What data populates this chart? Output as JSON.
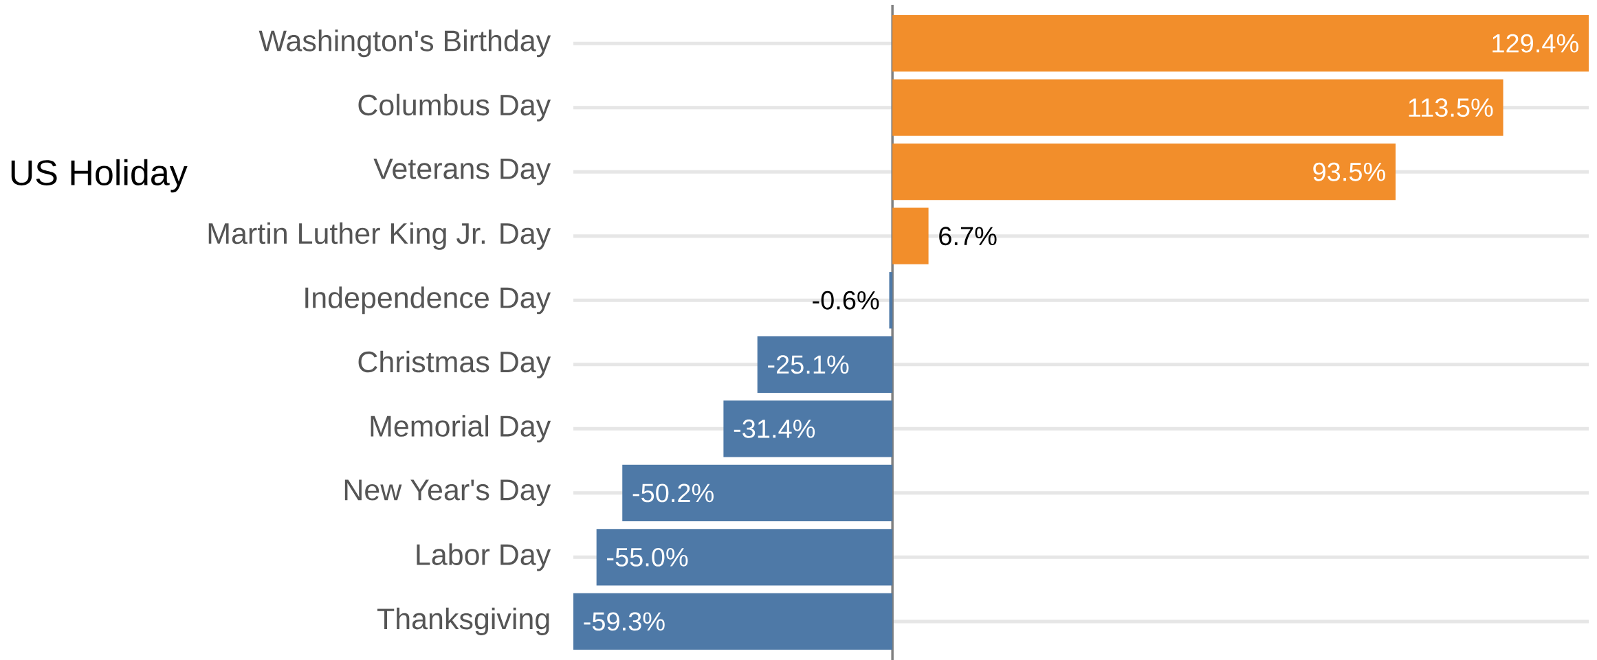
{
  "chart_data": {
    "type": "bar",
    "orientation": "horizontal",
    "ylabel": "US Holiday",
    "categories": [
      "Washington's Birthday",
      "Columbus Day",
      "Veterans Day",
      "Martin Luther King Jr. Day",
      "Independence Day",
      "Christmas Day",
      "Memorial Day",
      "New Year's Day",
      "Labor Day",
      "Thanksgiving"
    ],
    "values": [
      129.4,
      113.5,
      93.5,
      6.7,
      -0.6,
      -25.1,
      -31.4,
      -50.2,
      -55.0,
      -59.3
    ],
    "colors": [
      "#f28e2b",
      "#f28e2b",
      "#f28e2b",
      "#f28e2b",
      "#4e79a7",
      "#4e79a7",
      "#4e79a7",
      "#4e79a7",
      "#4e79a7",
      "#4e79a7"
    ],
    "value_labels": [
      "129.4%",
      "113.5%",
      "93.5%",
      "6.7%",
      "-0.6%",
      "-25.1%",
      "-31.4%",
      "-50.2%",
      "-55.0%",
      "-59.3%"
    ],
    "grid": "y",
    "tick_labels": "y",
    "ref_lines": [
      {
        "axis": "x",
        "value": 0,
        "color": "#808080"
      }
    ]
  }
}
